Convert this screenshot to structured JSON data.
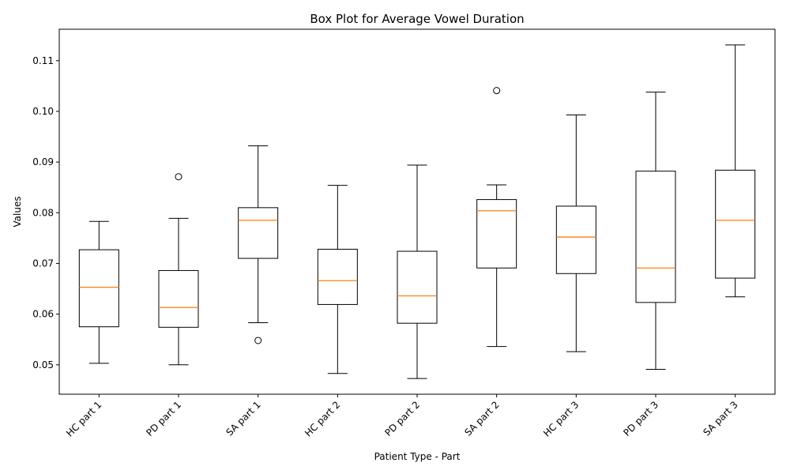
{
  "chart_data": {
    "type": "boxplot",
    "title": "Box Plot for Average Vowel Duration",
    "xlabel": "Patient Type - Part",
    "ylabel": "Values",
    "ylim": [
      0.0442,
      0.1162
    ],
    "yticks": [
      0.05,
      0.06,
      0.07,
      0.08,
      0.09,
      0.1,
      0.11
    ],
    "ytick_labels": [
      "0.05",
      "0.06",
      "0.07",
      "0.08",
      "0.09",
      "0.10",
      "0.11"
    ],
    "categories": [
      "HC part 1",
      "PD part 1",
      "SA part 1",
      "HC part 2",
      "PD part 2",
      "SA part 2",
      "HC part 3",
      "PD part 3",
      "SA part 3"
    ],
    "boxes": [
      {
        "whisker_low": 0.0503,
        "q1": 0.0575,
        "median": 0.0653,
        "q3": 0.0727,
        "whisker_high": 0.0783,
        "outliers": []
      },
      {
        "whisker_low": 0.05,
        "q1": 0.0574,
        "median": 0.0613,
        "q3": 0.0686,
        "whisker_high": 0.0789,
        "outliers": [
          0.0871
        ]
      },
      {
        "whisker_low": 0.0583,
        "q1": 0.071,
        "median": 0.0785,
        "q3": 0.081,
        "whisker_high": 0.0932,
        "outliers": [
          0.0548
        ]
      },
      {
        "whisker_low": 0.0483,
        "q1": 0.0619,
        "median": 0.0666,
        "q3": 0.0728,
        "whisker_high": 0.0854,
        "outliers": []
      },
      {
        "whisker_low": 0.0473,
        "q1": 0.0582,
        "median": 0.0636,
        "q3": 0.0724,
        "whisker_high": 0.0894,
        "outliers": []
      },
      {
        "whisker_low": 0.0536,
        "q1": 0.0691,
        "median": 0.0804,
        "q3": 0.0826,
        "whisker_high": 0.0855,
        "outliers": [
          0.1041
        ]
      },
      {
        "whisker_low": 0.0526,
        "q1": 0.068,
        "median": 0.0752,
        "q3": 0.0813,
        "whisker_high": 0.0993,
        "outliers": []
      },
      {
        "whisker_low": 0.0491,
        "q1": 0.0623,
        "median": 0.0691,
        "q3": 0.0882,
        "whisker_high": 0.1038,
        "outliers": []
      },
      {
        "whisker_low": 0.0634,
        "q1": 0.0671,
        "median": 0.0785,
        "q3": 0.0884,
        "whisker_high": 0.1131,
        "outliers": []
      }
    ],
    "colors": {
      "box": "#000000",
      "median": "#ff7f0e",
      "outlier": "#000000",
      "background": "#ffffff"
    },
    "grid": false,
    "xtick_rotation": 45
  }
}
